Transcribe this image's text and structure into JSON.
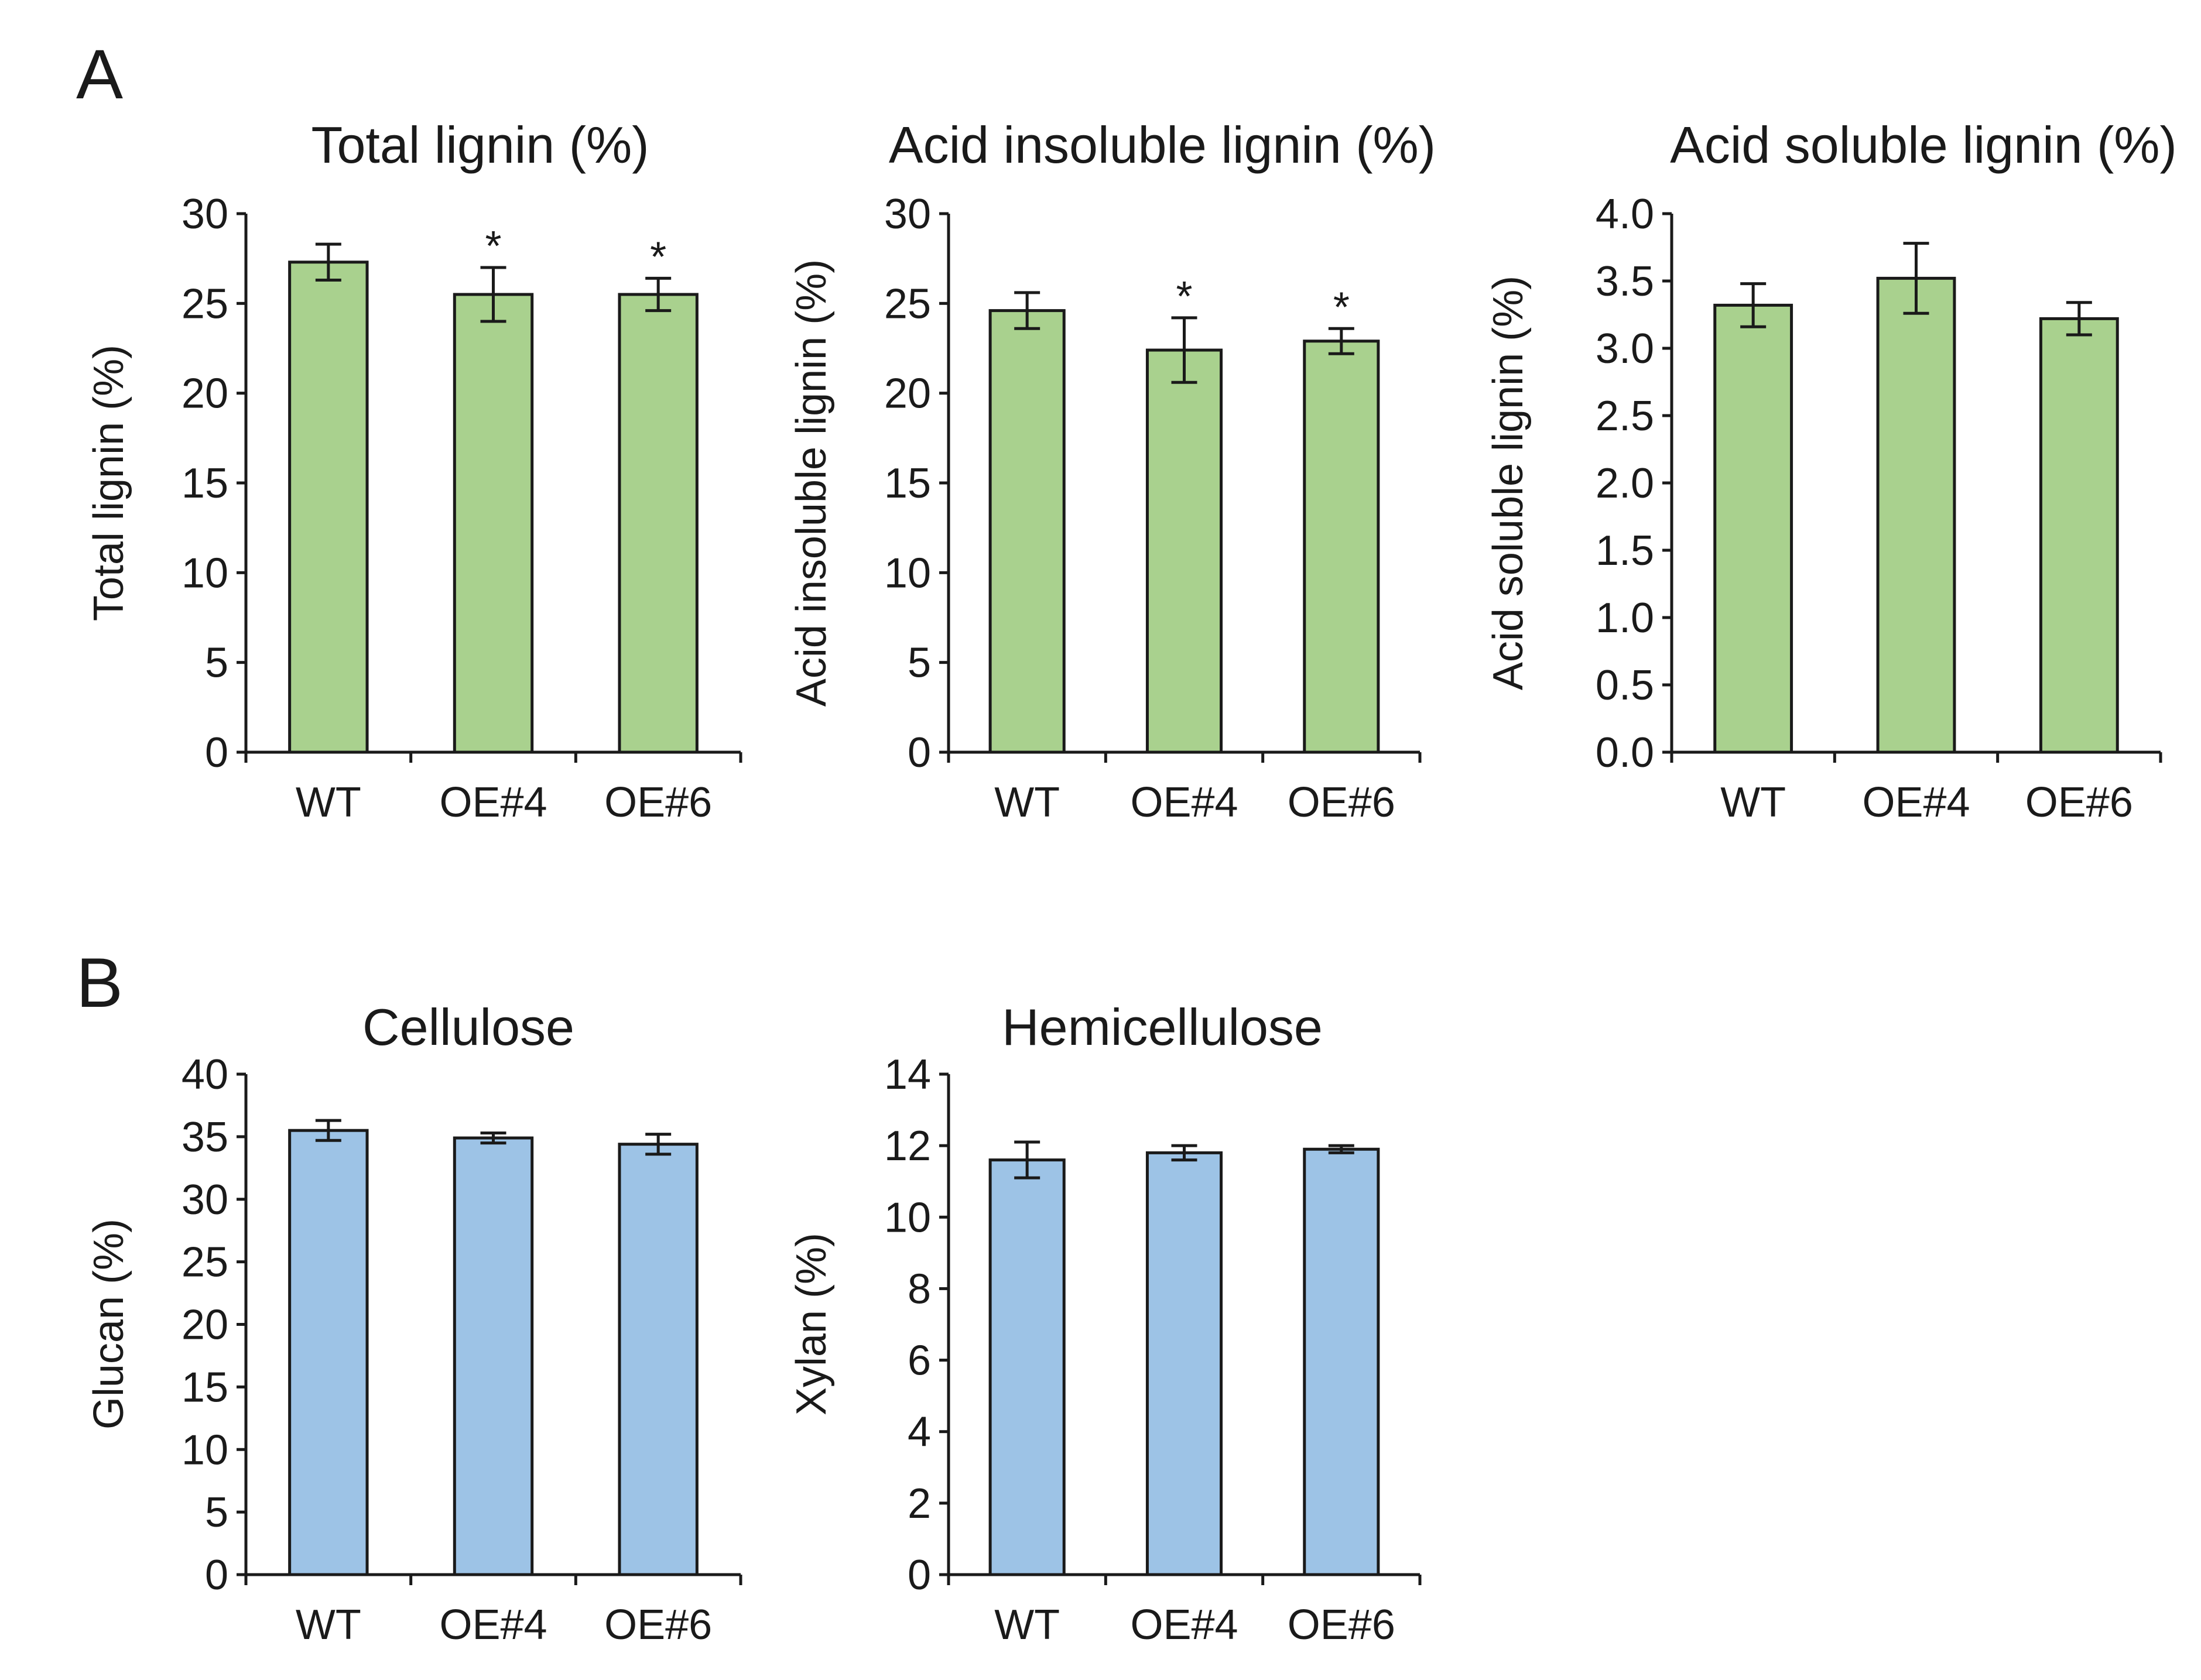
{
  "panels": [
    {
      "label": "A"
    },
    {
      "label": "B"
    }
  ],
  "chart_data": [
    {
      "type": "bar",
      "panel": "A",
      "title": "Total lignin (%)",
      "ylabel": "Total lignin (%)",
      "xlabel": "",
      "categories": [
        "WT",
        "OE#4",
        "OE#6"
      ],
      "values": [
        27.3,
        25.5,
        25.5
      ],
      "errors": [
        1.0,
        1.5,
        0.9
      ],
      "significance": [
        "",
        "*",
        "*"
      ],
      "ylim": [
        0,
        30
      ],
      "yticks": [
        "0",
        "5",
        "10",
        "15",
        "20",
        "25",
        "30"
      ],
      "bar_color": "#a9d18e"
    },
    {
      "type": "bar",
      "panel": "A",
      "title": "Acid insoluble lignin (%)",
      "ylabel": "Acid insoluble lignin (%)",
      "xlabel": "",
      "categories": [
        "WT",
        "OE#4",
        "OE#6"
      ],
      "values": [
        24.6,
        22.4,
        22.9
      ],
      "errors": [
        1.0,
        1.8,
        0.7
      ],
      "significance": [
        "",
        "*",
        "*"
      ],
      "ylim": [
        0,
        30
      ],
      "yticks": [
        "0",
        "5",
        "10",
        "15",
        "20",
        "25",
        "30"
      ],
      "bar_color": "#a9d18e"
    },
    {
      "type": "bar",
      "panel": "A",
      "title": "Acid soluble lignin (%)",
      "ylabel": "Acid soluble lignin (%)",
      "xlabel": "",
      "categories": [
        "WT",
        "OE#4",
        "OE#6"
      ],
      "values": [
        3.32,
        3.52,
        3.22
      ],
      "errors": [
        0.16,
        0.26,
        0.12
      ],
      "significance": [
        "",
        "",
        ""
      ],
      "ylim": [
        0,
        4
      ],
      "yticks": [
        "0.0",
        "0.5",
        "1.0",
        "1.5",
        "2.0",
        "2.5",
        "3.0",
        "3.5",
        "4.0"
      ],
      "bar_color": "#a9d18e"
    },
    {
      "type": "bar",
      "panel": "B",
      "title": "Cellulose",
      "ylabel": "Glucan (%)",
      "xlabel": "",
      "categories": [
        "WT",
        "OE#4",
        "OE#6"
      ],
      "values": [
        35.5,
        34.9,
        34.4
      ],
      "errors": [
        0.8,
        0.4,
        0.8
      ],
      "significance": [
        "",
        "",
        ""
      ],
      "ylim": [
        0,
        40
      ],
      "yticks": [
        "0",
        "5",
        "10",
        "15",
        "20",
        "25",
        "30",
        "35",
        "40"
      ],
      "bar_color": "#9dc3e6"
    },
    {
      "type": "bar",
      "panel": "B",
      "title": "Hemicellulose",
      "ylabel": "Xylan (%)",
      "xlabel": "",
      "categories": [
        "WT",
        "OE#4",
        "OE#6"
      ],
      "values": [
        11.6,
        11.8,
        11.9
      ],
      "errors": [
        0.5,
        0.2,
        0.1
      ],
      "significance": [
        "",
        "",
        ""
      ],
      "ylim": [
        0,
        14
      ],
      "yticks": [
        "0",
        "2",
        "4",
        "6",
        "8",
        "10",
        "12",
        "14"
      ],
      "bar_color": "#9dc3e6"
    }
  ]
}
